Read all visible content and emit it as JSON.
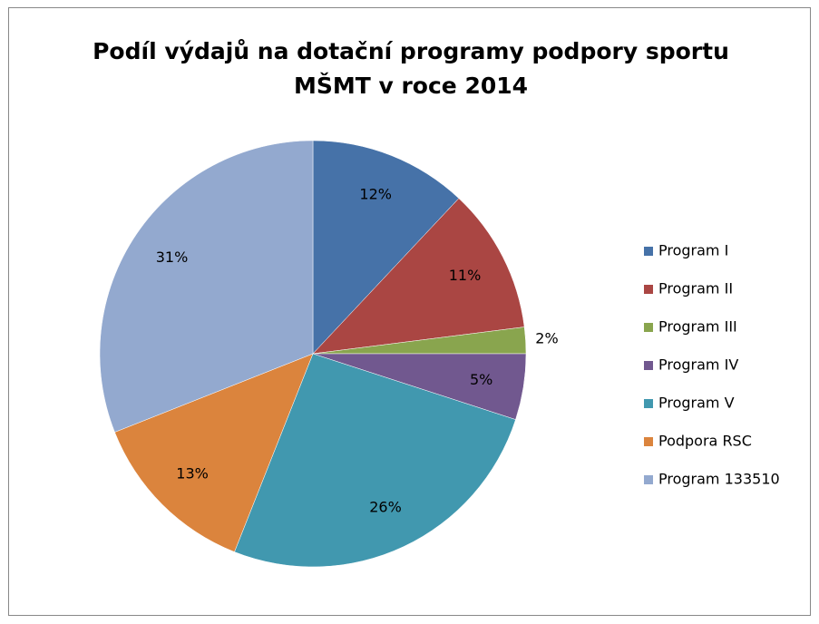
{
  "chart_data": {
    "type": "pie",
    "title": [
      "Podíl výdajů na dotační programy podpory sportu",
      "MŠMT v roce 2014"
    ],
    "categories": [
      "Program I",
      "Program II",
      "Program III",
      "Program IV",
      "Program V",
      "Podpora RSC",
      "Program 133510"
    ],
    "values": [
      12,
      11,
      2,
      5,
      26,
      13,
      31
    ],
    "value_labels": [
      "12%",
      "11%",
      "2%",
      "5%",
      "26%",
      "13%",
      "31%"
    ],
    "colors": [
      "#4672a8",
      "#aa4643",
      "#89a54e",
      "#71588f",
      "#4198af",
      "#db843d",
      "#93a9cf"
    ],
    "legend": "right"
  }
}
